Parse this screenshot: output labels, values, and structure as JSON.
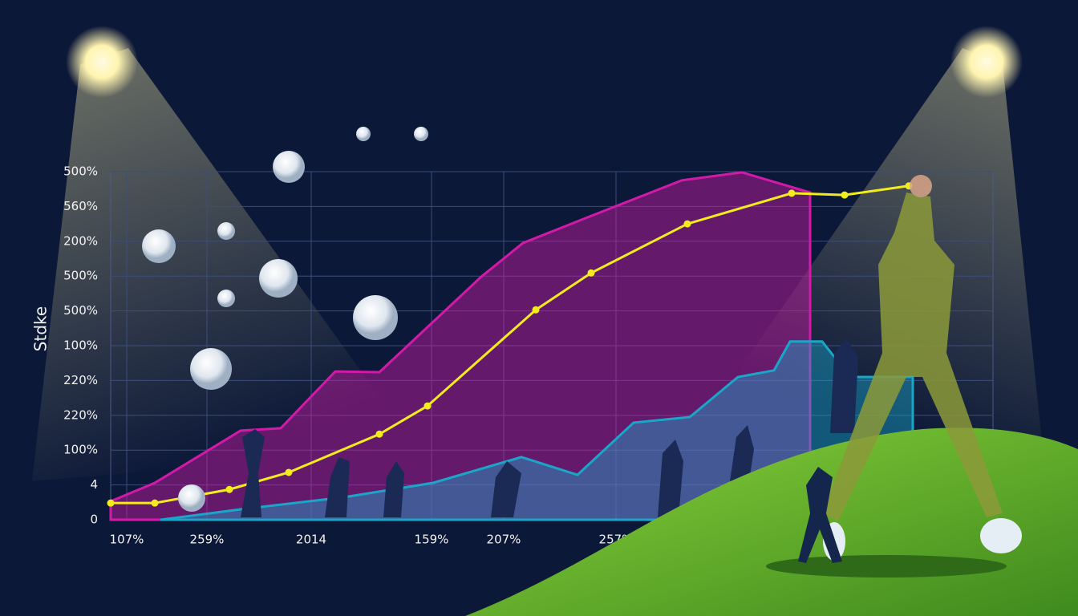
{
  "chart_data": {
    "type": "line",
    "y_label": "Stdke",
    "xlim": [
      0,
      11
    ],
    "xticks": [
      {
        "value": 0.2,
        "label": "107%"
      },
      {
        "value": 1.2,
        "label": "259%"
      },
      {
        "value": 2.5,
        "label": "2014"
      },
      {
        "value": 4,
        "label": "159%"
      },
      {
        "value": 4.9,
        "label": "207%"
      },
      {
        "value": 6.3,
        "label": "257%"
      }
    ],
    "ylim": [
      0,
      10
    ],
    "yticks": [
      0,
      {
        "value": 1,
        "label": "4"
      },
      {
        "value": 2,
        "label": "100%"
      },
      {
        "value": 3,
        "label": "220%"
      },
      {
        "value": 4,
        "label": "220%"
      },
      {
        "value": 5,
        "label": "100%"
      },
      {
        "value": 6,
        "label": "500%"
      },
      {
        "value": 7,
        "label": "500%"
      },
      {
        "value": 8,
        "label": "200%"
      },
      {
        "value": 9,
        "label": "560%"
      },
      {
        "value": 10,
        "label": "500%"
      }
    ],
    "grid": true,
    "series": [
      {
        "style": "area",
        "color": "#d21aa8",
        "x": [
          0,
          0.55,
          1.62,
          2.12,
          2.8,
          3.35,
          4.62,
          5.14,
          5.97,
          7.12,
          7.87,
          8.72
        ],
        "values": [
          0.53,
          1.06,
          2.56,
          2.63,
          4.26,
          4.24,
          6.98,
          7.95,
          8.71,
          9.75,
          9.98,
          9.4
        ]
      },
      {
        "style": "area",
        "color": "#1aa6c8",
        "x": [
          0.62,
          1.62,
          2.92,
          4.02,
          5.12,
          5.82,
          6.52,
          7.22,
          7.82,
          8.27,
          8.47,
          8.87,
          9.22,
          10.0
        ],
        "values": [
          0,
          0.3,
          0.65,
          1.06,
          1.8,
          1.29,
          2.79,
          2.95,
          4.1,
          4.29,
          5.12,
          5.12,
          4.1,
          4.1
        ]
      },
      {
        "style": "line",
        "color": "#f2ec1c",
        "x": [
          0,
          0.55,
          1.48,
          2.22,
          3.35,
          3.95,
          5.3,
          5.99,
          7.19,
          8.49,
          9.15,
          9.95
        ],
        "values": [
          0.48,
          0.48,
          0.87,
          1.36,
          2.46,
          3.27,
          6.03,
          7.09,
          8.5,
          9.38,
          9.33,
          9.59
        ]
      }
    ]
  }
}
